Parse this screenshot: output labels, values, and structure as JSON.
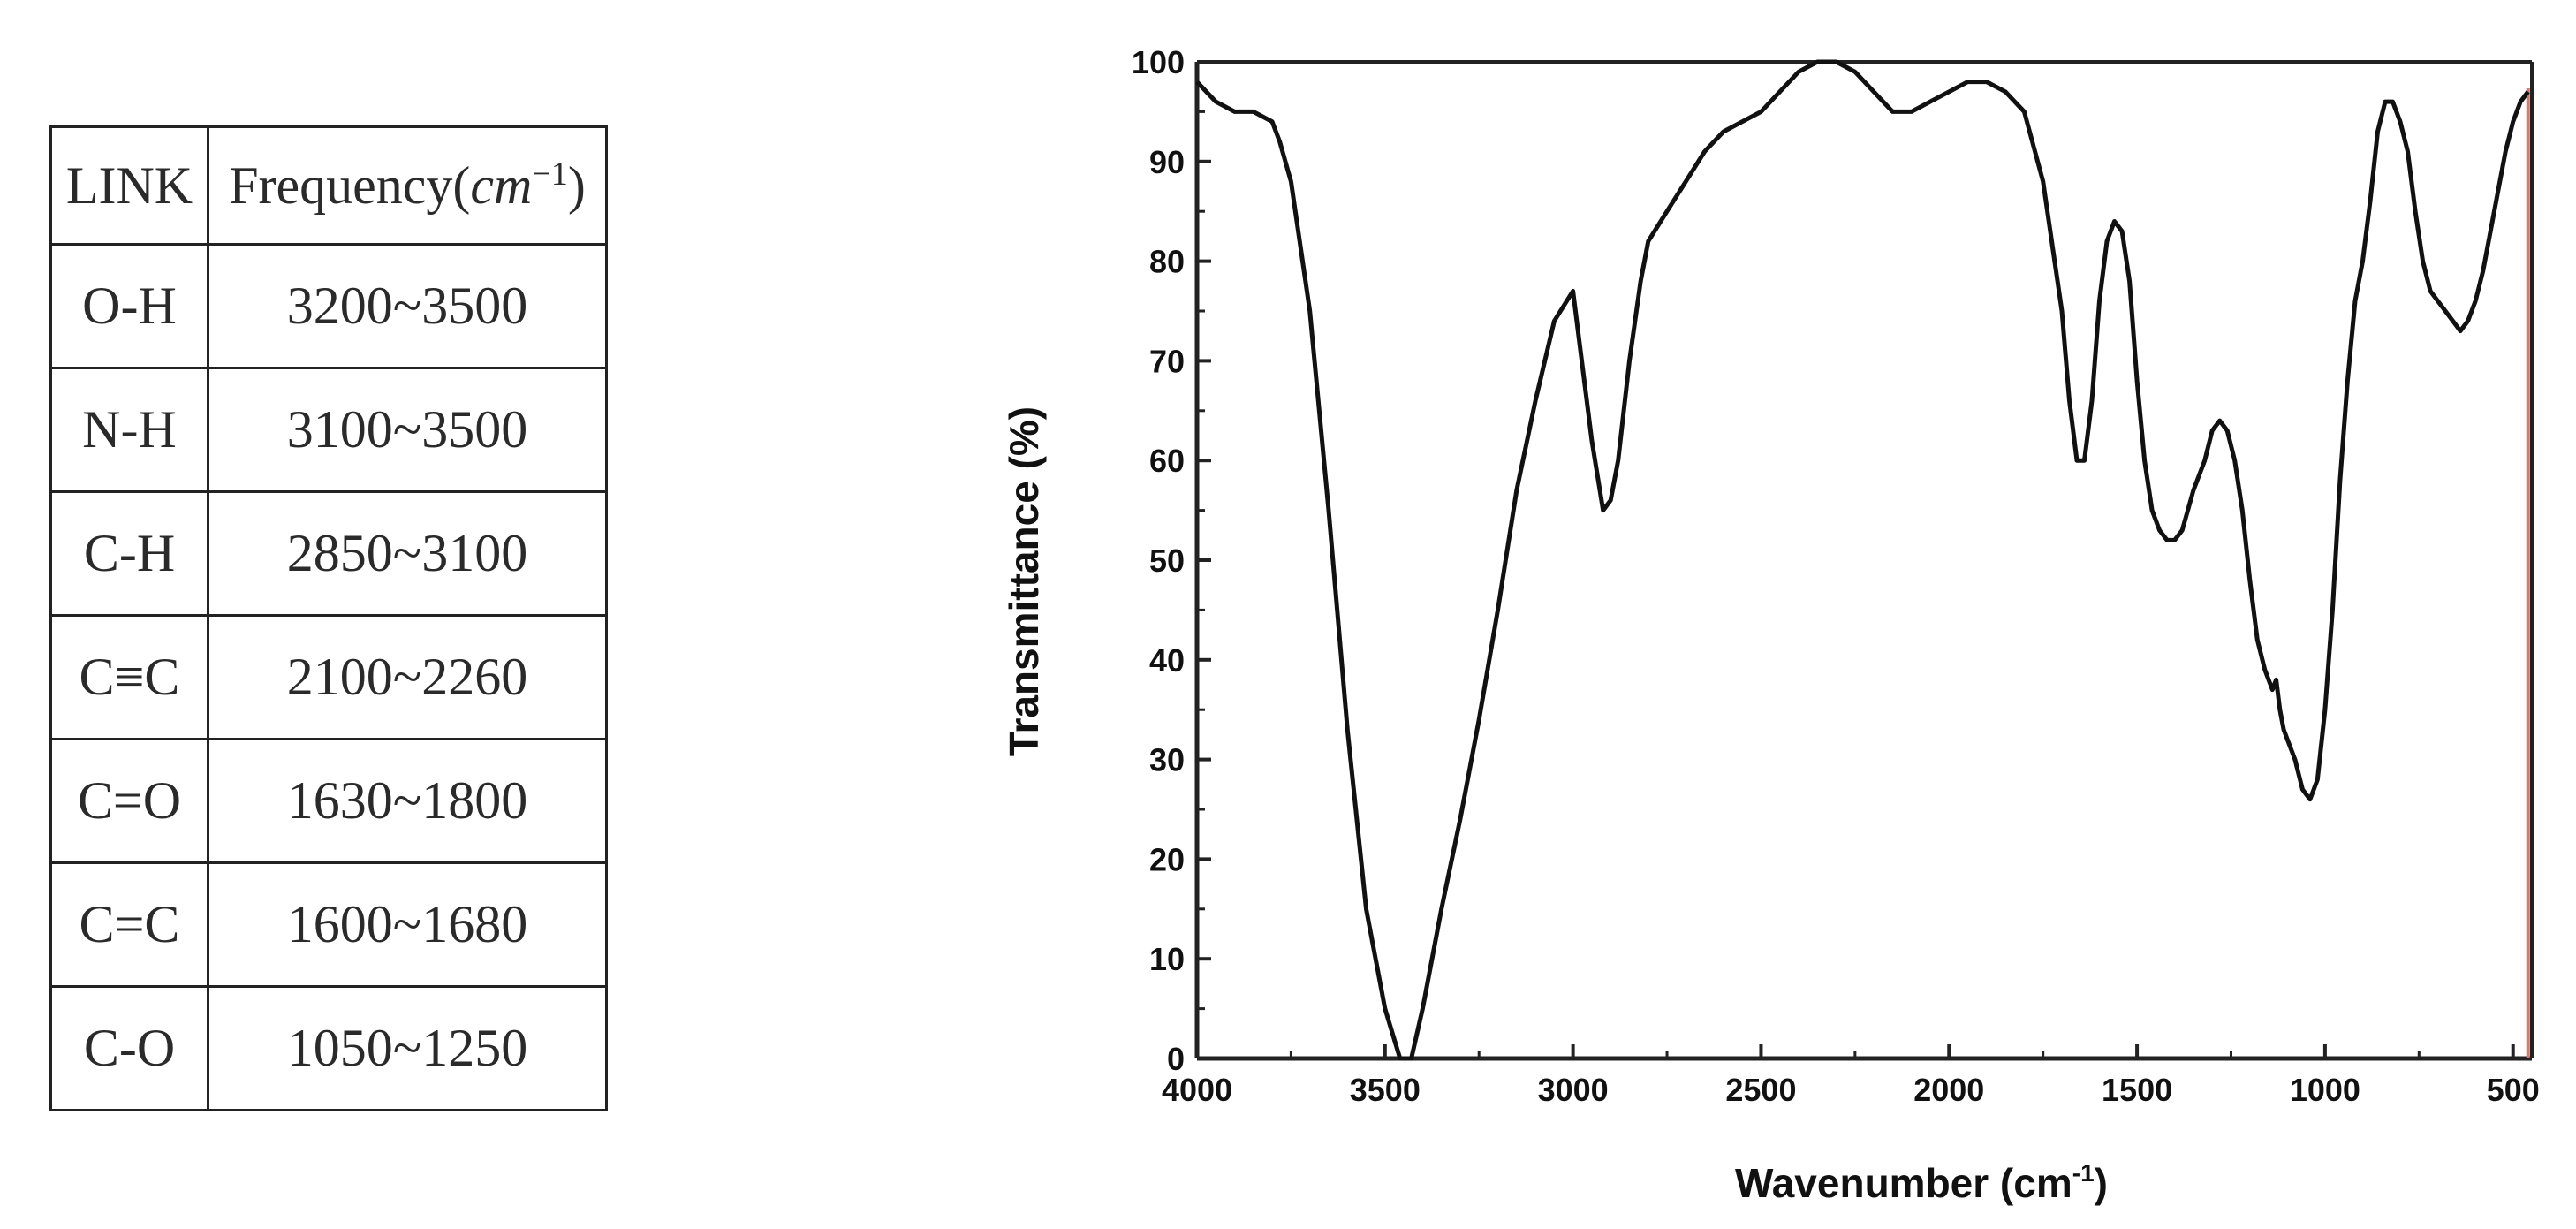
{
  "table": {
    "headers": {
      "link": "LINK",
      "frequency_prefix": "Frequency(",
      "frequency_unit": "cm",
      "frequency_exp": "−1",
      "frequency_suffix": ")"
    },
    "rows": [
      {
        "link": "O-H",
        "frequency": "3200~3500"
      },
      {
        "link": "N-H",
        "frequency": "3100~3500"
      },
      {
        "link": "C-H",
        "frequency": "2850~3100"
      },
      {
        "link": "C≡C",
        "frequency": "2100~2260"
      },
      {
        "link": "C=O",
        "frequency": "1630~1800"
      },
      {
        "link": "C=C",
        "frequency": "1600~1680"
      },
      {
        "link": "C-O",
        "frequency": "1050~1250"
      }
    ]
  },
  "chart_data": {
    "type": "line",
    "title": "",
    "xlabel": "Wavenumber (cm",
    "xlabel_sup": "-1",
    "xlabel_close": ")",
    "ylabel": "Transmittance (%)",
    "xlim": [
      4000,
      450
    ],
    "ylim": [
      0,
      100
    ],
    "x_ticks": [
      4000,
      3500,
      3000,
      2500,
      2000,
      1500,
      1000,
      500
    ],
    "y_ticks": [
      0,
      10,
      20,
      30,
      40,
      50,
      60,
      70,
      80,
      90,
      100
    ],
    "grid": false,
    "line_color": "#111111",
    "marker_color": "#d9786a",
    "marker_x": 460,
    "series": [
      {
        "x": [
          4000,
          3950,
          3900,
          3850,
          3800,
          3780,
          3750,
          3700,
          3650,
          3600,
          3550,
          3500,
          3460,
          3430,
          3400,
          3350,
          3300,
          3250,
          3200,
          3150,
          3100,
          3050,
          3000,
          2980,
          2950,
          2920,
          2900,
          2880,
          2850,
          2820,
          2800,
          2750,
          2700,
          2650,
          2600,
          2550,
          2500,
          2450,
          2400,
          2350,
          2300,
          2250,
          2200,
          2150,
          2100,
          2050,
          2000,
          1950,
          1900,
          1850,
          1800,
          1750,
          1700,
          1680,
          1660,
          1640,
          1620,
          1600,
          1580,
          1560,
          1540,
          1520,
          1500,
          1480,
          1460,
          1440,
          1420,
          1400,
          1380,
          1350,
          1320,
          1300,
          1280,
          1260,
          1240,
          1220,
          1200,
          1180,
          1160,
          1140,
          1130,
          1120,
          1110,
          1100,
          1080,
          1060,
          1040,
          1020,
          1000,
          980,
          960,
          940,
          920,
          900,
          880,
          860,
          840,
          820,
          800,
          780,
          760,
          740,
          720,
          700,
          680,
          660,
          640,
          620,
          600,
          580,
          560,
          540,
          520,
          500,
          480,
          460
        ],
        "y": [
          98,
          96,
          95,
          95,
          94,
          92,
          88,
          75,
          55,
          33,
          15,
          5,
          0,
          0,
          5,
          15,
          24,
          34,
          45,
          57,
          66,
          74,
          77,
          71,
          62,
          55,
          56,
          60,
          70,
          78,
          82,
          85,
          88,
          91,
          93,
          94,
          95,
          97,
          99,
          100,
          100,
          99,
          97,
          95,
          95,
          96,
          97,
          98,
          98,
          97,
          95,
          88,
          75,
          66,
          60,
          60,
          66,
          76,
          82,
          84,
          83,
          78,
          68,
          60,
          55,
          53,
          52,
          52,
          53,
          57,
          60,
          63,
          64,
          63,
          60,
          55,
          48,
          42,
          39,
          37,
          38,
          35,
          33,
          32,
          30,
          27,
          26,
          28,
          35,
          45,
          58,
          68,
          76,
          80,
          86,
          93,
          96,
          96,
          94,
          91,
          85,
          80,
          77,
          76,
          75,
          74,
          73,
          74,
          76,
          79,
          83,
          87,
          91,
          94,
          96,
          97
        ]
      }
    ]
  }
}
